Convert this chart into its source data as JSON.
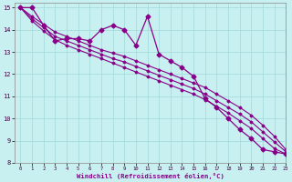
{
  "xlabel": "Windchill (Refroidissement éolien,°C)",
  "bg_color": "#c8f0f0",
  "grid_color": "#a0d8d8",
  "line_color": "#880088",
  "xlim": [
    -0.5,
    23
  ],
  "ylim": [
    8,
    15.2
  ],
  "yticks": [
    8,
    9,
    10,
    11,
    12,
    13,
    14,
    15
  ],
  "xticks": [
    0,
    1,
    2,
    3,
    4,
    5,
    6,
    7,
    8,
    9,
    10,
    11,
    12,
    13,
    14,
    15,
    16,
    17,
    18,
    19,
    20,
    21,
    22,
    23
  ],
  "x": [
    0,
    1,
    2,
    3,
    4,
    5,
    6,
    7,
    8,
    9,
    10,
    11,
    12,
    13,
    14,
    15,
    16,
    17,
    18,
    19,
    20,
    21,
    22,
    23
  ],
  "y_jagged": [
    15.0,
    15.0,
    14.2,
    13.5,
    13.6,
    13.6,
    13.5,
    14.0,
    14.2,
    14.0,
    13.3,
    14.6,
    12.9,
    12.6,
    12.3,
    11.9,
    10.9,
    10.5,
    10.0,
    9.5,
    9.1,
    8.6,
    8.5,
    8.4
  ],
  "y_upper": [
    15.0,
    14.6,
    14.25,
    13.9,
    13.7,
    13.5,
    13.3,
    13.1,
    12.95,
    12.8,
    12.6,
    12.4,
    12.2,
    12.0,
    11.8,
    11.6,
    11.4,
    11.1,
    10.8,
    10.5,
    10.15,
    9.7,
    9.2,
    8.6
  ],
  "y_mid": [
    15.0,
    14.5,
    14.1,
    13.7,
    13.5,
    13.3,
    13.1,
    12.9,
    12.7,
    12.55,
    12.35,
    12.15,
    11.95,
    11.75,
    11.55,
    11.35,
    11.1,
    10.8,
    10.5,
    10.2,
    9.85,
    9.4,
    8.95,
    8.5
  ],
  "y_lower": [
    15.0,
    14.4,
    13.95,
    13.55,
    13.3,
    13.1,
    12.9,
    12.7,
    12.5,
    12.3,
    12.1,
    11.9,
    11.7,
    11.5,
    11.3,
    11.1,
    10.85,
    10.55,
    10.25,
    9.9,
    9.55,
    9.1,
    8.65,
    8.4
  ]
}
